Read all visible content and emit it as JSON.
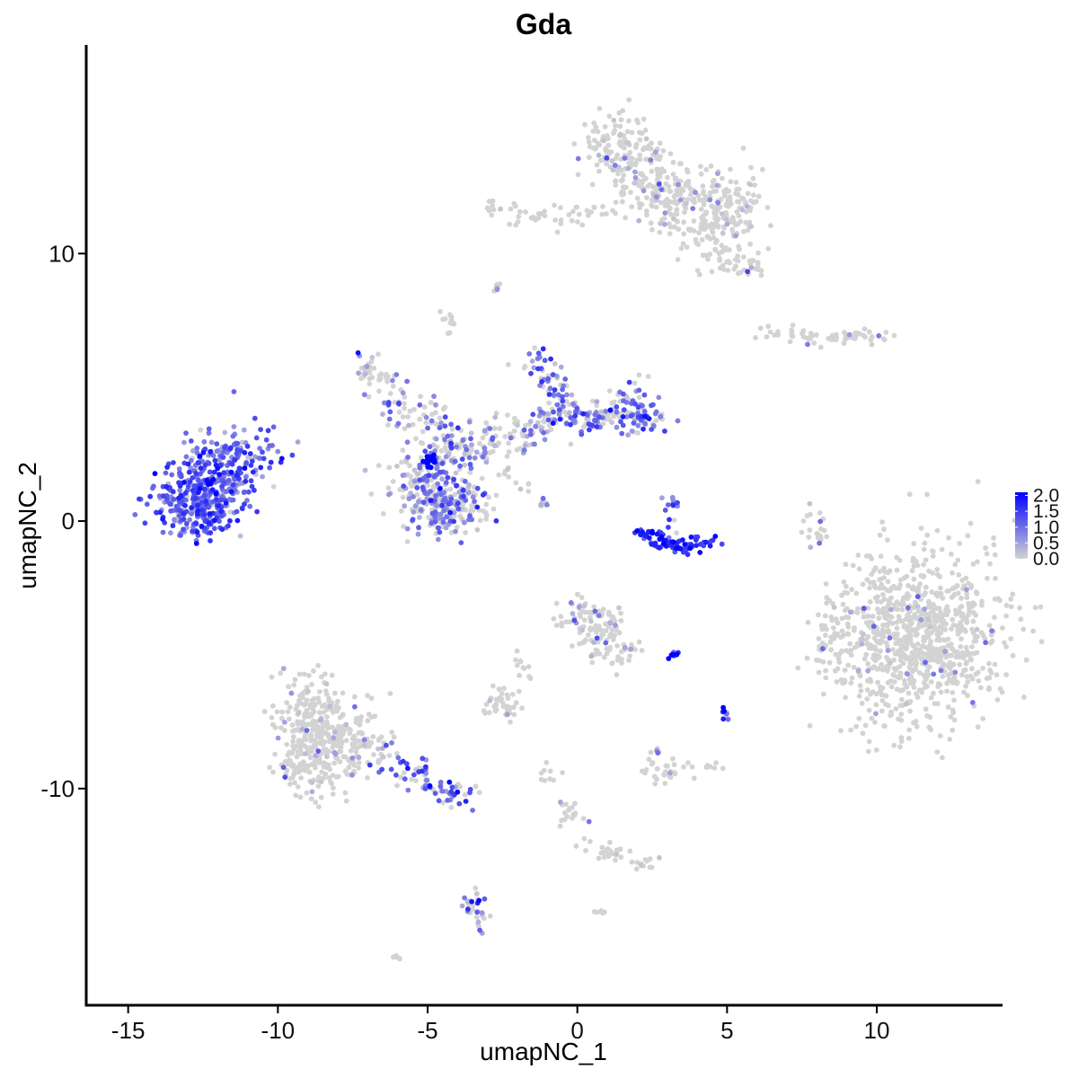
{
  "chart_data": {
    "type": "scatter",
    "title": "Gda",
    "xlabel": "umapNC_1",
    "ylabel": "umapNC_2",
    "xlim": [
      -16.4,
      14.2
    ],
    "ylim": [
      -18.1,
      17.8
    ],
    "xticks": [
      -15,
      -10,
      -5,
      0,
      5,
      10
    ],
    "xtick_labels": [
      "-15",
      "-10",
      "-5",
      "0",
      "5",
      "10"
    ],
    "yticks": [
      -10,
      0,
      10
    ],
    "ytick_labels": [
      "-10",
      "0",
      "10"
    ],
    "grid": false,
    "colors": {
      "low": "#d3d3d3",
      "high": "#0000ff"
    },
    "legend": {
      "placement": "right",
      "range": [
        0,
        2.1
      ],
      "ticks": [
        2.0,
        1.5,
        1.0,
        0.5,
        0.0
      ],
      "tick_labels": [
        "2.0",
        "1.5",
        "1.0",
        "0.5",
        "0.0"
      ]
    },
    "clusters": [
      {
        "name": "",
        "x": [
          -12.9,
          -12.7,
          -12.6,
          -12.2,
          -11.8,
          -11.3
        ],
        "y": [
          0.4,
          0.9,
          1.5,
          0.7,
          1.9,
          2.5
        ],
        "spread": [
          0.7,
          0.6
        ],
        "count": 500,
        "expression": 0.75
      },
      {
        "name": "",
        "x": [
          -4.7,
          -5.4,
          -4.3,
          -4.6,
          -3.9
        ],
        "y": [
          0.6,
          1.3,
          0.2,
          2.0,
          0.8
        ],
        "spread": [
          0.6,
          0.5
        ],
        "count": 340,
        "expression": 0.4
      },
      {
        "name": "",
        "x": [
          -6.2,
          -5.4,
          -4.7,
          -3.7,
          -3.0,
          -2.2
        ],
        "y": [
          4.5,
          4.0,
          3.5,
          2.8,
          2.9,
          3.2
        ],
        "spread": [
          0.5,
          0.4
        ],
        "count": 160,
        "expression": 0.3
      },
      {
        "name": "",
        "x": [
          -1.6,
          -0.9,
          -0.2,
          0.6,
          1.3,
          2.1
        ],
        "y": [
          3.4,
          3.8,
          4.0,
          3.8,
          4.1,
          4.0
        ],
        "spread": [
          0.4,
          0.3
        ],
        "count": 160,
        "expression": 0.4
      },
      {
        "name": "",
        "x": [
          -1.3,
          -0.9,
          -0.6
        ],
        "y": [
          5.9,
          5.2,
          4.6
        ],
        "spread": [
          0.3,
          0.4
        ],
        "count": 60,
        "expression": 0.55
      },
      {
        "name": "",
        "x": [
          2.0,
          2.5,
          1.8
        ],
        "y": [
          4.0,
          3.8,
          4.6
        ],
        "spread": [
          0.3,
          0.3
        ],
        "count": 60,
        "expression": 0.55
      },
      {
        "name": "",
        "x": [
          -7.0,
          -6.6
        ],
        "y": [
          5.7,
          5.2
        ],
        "spread": [
          0.3,
          0.3
        ],
        "count": 40,
        "expression": 0.1
      },
      {
        "name": "",
        "x": [
          -4.9
        ],
        "y": [
          2.3
        ],
        "spread": [
          0.12,
          0.2
        ],
        "count": 18,
        "expression": 1.8
      },
      {
        "name": "",
        "x": [
          -2.4,
          -1.8,
          -1.2
        ],
        "y": [
          1.8,
          1.2,
          0.7
        ],
        "spread": [
          0.15,
          0.15
        ],
        "count": 20,
        "expression": 0.2
      },
      {
        "name": "",
        "x": [
          2.3,
          2.8,
          3.5,
          4.2
        ],
        "y": [
          -0.5,
          -0.8,
          -1.0,
          -0.8
        ],
        "spread": [
          0.3,
          0.12
        ],
        "count": 90,
        "expression": 1.2
      },
      {
        "name": "",
        "x": [
          3.1
        ],
        "y": [
          0.6
        ],
        "spread": [
          0.2,
          0.4
        ],
        "count": 15,
        "expression": 0.7
      },
      {
        "name": "",
        "x": [
          1.3,
          2.1,
          3.2,
          4.3,
          5.1
        ],
        "y": [
          14.1,
          13.0,
          12.2,
          11.3,
          11.9
        ],
        "spread": [
          0.6,
          0.7
        ],
        "count": 480,
        "expression": 0.05
      },
      {
        "name": "",
        "x": [
          4.9,
          5.5
        ],
        "y": [
          10.0,
          9.6
        ],
        "spread": [
          0.5,
          0.3
        ],
        "count": 50,
        "expression": 0.05
      },
      {
        "name": "",
        "x": [
          -2.7,
          -1.6,
          -0.3,
          0.4
        ],
        "y": [
          11.7,
          11.4,
          11.3,
          11.6
        ],
        "spread": [
          0.5,
          0.2
        ],
        "count": 50,
        "expression": 0.0
      },
      {
        "name": "",
        "x": [
          7.1,
          8.3,
          9.4
        ],
        "y": [
          7.0,
          6.8,
          6.9
        ],
        "spread": [
          0.6,
          0.15
        ],
        "count": 60,
        "expression": 0.05
      },
      {
        "name": "",
        "x": [
          11.3
        ],
        "y": [
          -4.3
        ],
        "spread": [
          1.4,
          1.6
        ],
        "count": 900,
        "expression": 0.02
      },
      {
        "name": "",
        "x": [
          8.4
        ],
        "y": [
          -4.4
        ],
        "spread": [
          0.3,
          0.9
        ],
        "count": 40,
        "expression": 0.0
      },
      {
        "name": "",
        "x": [
          8.0
        ],
        "y": [
          0.0
        ],
        "spread": [
          0.2,
          0.7
        ],
        "count": 20,
        "expression": 0.05
      },
      {
        "name": "",
        "x": [
          -8.9,
          -8.6,
          -8.9,
          -7.8
        ],
        "y": [
          -6.9,
          -8.0,
          -9.2,
          -8.4
        ],
        "spread": [
          0.7,
          0.6
        ],
        "count": 420,
        "expression": 0.03
      },
      {
        "name": "",
        "x": [
          -6.4,
          -5.3,
          -4.5,
          -4.0
        ],
        "y": [
          -8.8,
          -9.4,
          -10.0,
          -10.3
        ],
        "spread": [
          0.35,
          0.25
        ],
        "count": 80,
        "expression": 0.6
      },
      {
        "name": "",
        "x": [
          0.0,
          0.9,
          0.6,
          1.3
        ],
        "y": [
          -3.4,
          -3.7,
          -4.2,
          -4.9
        ],
        "spread": [
          0.4,
          0.35
        ],
        "count": 130,
        "expression": 0.1
      },
      {
        "name": "",
        "x": [
          -1.7,
          -2.5
        ],
        "y": [
          -5.5,
          -6.6
        ],
        "spread": [
          0.25,
          0.3
        ],
        "count": 25,
        "expression": 0.1
      },
      {
        "name": "",
        "x": [
          -2.8,
          -2.2
        ],
        "y": [
          -6.9,
          -7.1
        ],
        "spread": [
          0.2,
          0.15
        ],
        "count": 25,
        "expression": 0.1
      },
      {
        "name": "",
        "x": [
          2.5,
          3.2
        ],
        "y": [
          -9.4,
          -9.4
        ],
        "spread": [
          0.35,
          0.25
        ],
        "count": 30,
        "expression": 0.05
      },
      {
        "name": "",
        "x": [
          1.1,
          2.1
        ],
        "y": [
          -12.4,
          -12.8
        ],
        "spread": [
          0.35,
          0.15
        ],
        "count": 35,
        "expression": 0.0
      },
      {
        "name": "",
        "x": [
          -0.9,
          -0.3,
          0.1
        ],
        "y": [
          -9.6,
          -10.9,
          -11.9
        ],
        "spread": [
          0.25,
          0.35
        ],
        "count": 30,
        "expression": 0.0
      },
      {
        "name": "",
        "x": [
          -3.5,
          -3.3
        ],
        "y": [
          -14.2,
          -15.0
        ],
        "spread": [
          0.15,
          0.3
        ],
        "count": 30,
        "expression": 0.35
      },
      {
        "name": "",
        "x": [
          3.2
        ],
        "y": [
          -5.0
        ],
        "spread": [
          0.15,
          0.08
        ],
        "count": 8,
        "expression": 1.2
      },
      {
        "name": "",
        "x": [
          5.0
        ],
        "y": [
          -7.2
        ],
        "spread": [
          0.1,
          0.15
        ],
        "count": 8,
        "expression": 0.6
      },
      {
        "name": "",
        "x": [
          2.6
        ],
        "y": [
          -8.6
        ],
        "spread": [
          0.08,
          0.1
        ],
        "count": 5,
        "expression": 0.6
      },
      {
        "name": "",
        "x": [
          -4.3
        ],
        "y": [
          7.5
        ],
        "spread": [
          0.15,
          0.2
        ],
        "count": 12,
        "expression": 0.0
      },
      {
        "name": "",
        "x": [
          -2.7
        ],
        "y": [
          8.7
        ],
        "spread": [
          0.12,
          0.1
        ],
        "count": 8,
        "expression": 0.2
      },
      {
        "name": "",
        "x": [
          -6.0
        ],
        "y": [
          -16.3
        ],
        "spread": [
          0.1,
          0.06
        ],
        "count": 5,
        "expression": 0.0
      },
      {
        "name": "",
        "x": [
          0.7
        ],
        "y": [
          -14.6
        ],
        "spread": [
          0.12,
          0.08
        ],
        "count": 5,
        "expression": 0.0
      },
      {
        "name": "",
        "x": [
          4.5
        ],
        "y": [
          -9.2
        ],
        "spread": [
          0.15,
          0.1
        ],
        "count": 6,
        "expression": 0.0
      }
    ]
  }
}
